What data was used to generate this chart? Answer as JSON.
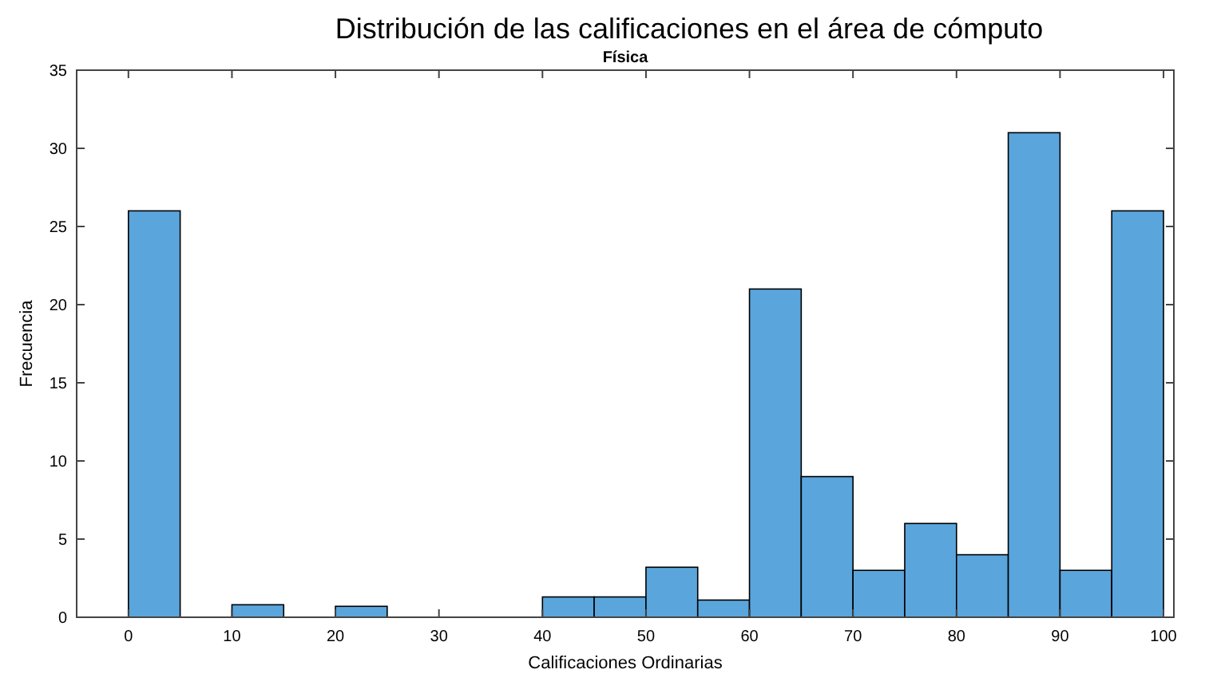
{
  "chart_data": {
    "type": "histogram",
    "title": "Distribución de las calificaciones en el área de cómputo",
    "subtitle": "Física",
    "xlabel": "Calificaciones Ordinarias",
    "ylabel": "Frecuencia",
    "bins": [
      0,
      5,
      10,
      15,
      20,
      25,
      30,
      35,
      40,
      45,
      50,
      55,
      60,
      65,
      70,
      75,
      80,
      85,
      90,
      95,
      100
    ],
    "values": [
      26,
      0,
      0.8,
      0,
      0.7,
      0,
      0,
      0,
      1.3,
      1.3,
      3.2,
      1.1,
      21,
      9,
      3,
      6,
      4,
      31,
      3,
      26
    ],
    "color": "#5aa5dc",
    "xlim": [
      -5,
      101
    ],
    "ylim": [
      0,
      35
    ],
    "xticks": [
      0,
      10,
      20,
      30,
      40,
      50,
      60,
      70,
      80,
      90,
      100
    ],
    "yticks": [
      0,
      5,
      10,
      15,
      20,
      25,
      30,
      35
    ],
    "grid": false
  }
}
